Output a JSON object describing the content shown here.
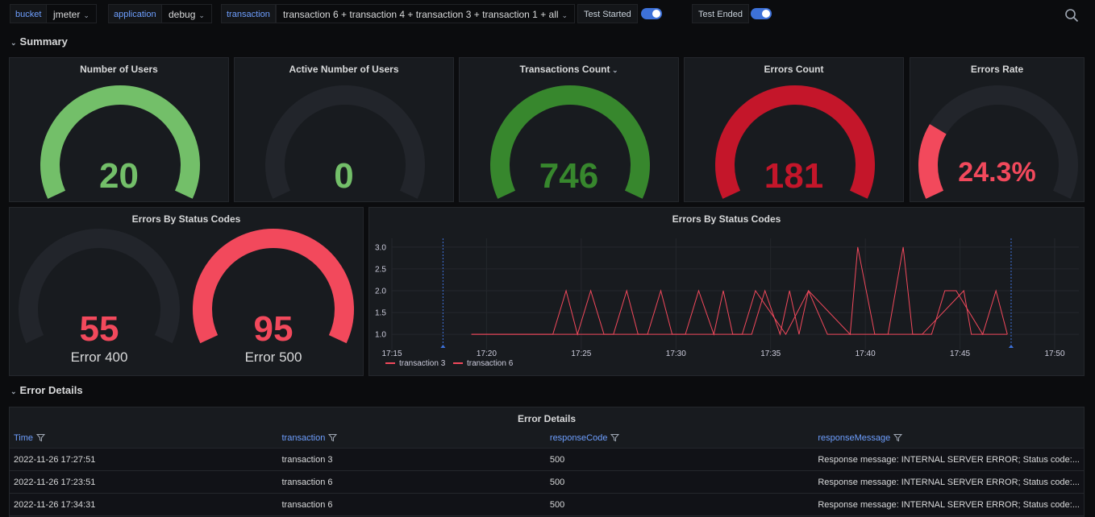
{
  "topbar": {
    "bucket_label": "bucket",
    "bucket_value": "jmeter",
    "application_label": "application",
    "application_value": "debug",
    "transaction_label": "transaction",
    "transaction_value": "transaction 6 + transaction 4 + transaction 3 + transaction 1 + all",
    "test_started_label": "Test Started",
    "test_started_on": true,
    "test_ended_label": "Test Ended",
    "test_ended_on": true
  },
  "rows": {
    "summary": "Summary",
    "error_details": "Error Details"
  },
  "summary_panels": [
    {
      "title": "Number of Users",
      "value": "20",
      "fill": 1.0,
      "color": "#73bf69",
      "text_color": "#73bf69"
    },
    {
      "title": "Active Number of Users",
      "value": "0",
      "fill": 0.0,
      "color": "#73bf69",
      "text_color": "#73bf69"
    },
    {
      "title": "Transactions Count",
      "value": "746",
      "fill": 1.0,
      "color": "#37872d",
      "text_color": "#37872d"
    },
    {
      "title": "Errors Count",
      "value": "181",
      "fill": 1.0,
      "color": "#c4162a",
      "text_color": "#c4162a"
    },
    {
      "title": "Errors Rate",
      "value": "24.3%",
      "fill": 0.243,
      "color": "#f2495c",
      "text_color": "#f2495c"
    }
  ],
  "status_gauge_panel": {
    "title": "Errors By Status Codes",
    "gauges": [
      {
        "value": "55",
        "label": "Error 400",
        "fill": 0.0,
        "color": "#f2495c"
      },
      {
        "value": "95",
        "label": "Error 500",
        "fill": 1.0,
        "color": "#f2495c"
      }
    ]
  },
  "chart_data": {
    "type": "line",
    "title": "Errors By Status Codes",
    "x_ticks": [
      "17:15",
      "17:20",
      "17:25",
      "17:30",
      "17:35",
      "17:40",
      "17:45",
      "17:50"
    ],
    "y_ticks": [
      "1.0",
      "1.5",
      "2.0",
      "2.5",
      "3.0"
    ],
    "ylim": [
      0.8,
      3.2
    ],
    "xlim_minutes": [
      15,
      50
    ],
    "annotations_x": [
      17.7,
      47.7
    ],
    "series": [
      {
        "name": "transaction 3",
        "color": "#f2495c",
        "x": [
          19.2,
          23.5,
          24.2,
          24.8,
          25.5,
          26.2,
          26.7,
          27.4,
          28.0,
          30.5,
          31.2,
          32.0,
          32.5,
          33.0,
          34.0,
          34.7,
          35.5,
          36.0,
          36.5,
          37.0,
          39.2,
          39.6,
          40.5,
          41.2,
          42.0,
          42.5,
          43.0,
          45.2,
          45.6,
          47.5
        ],
        "y": [
          1.0,
          1.0,
          2.0,
          1.0,
          2.0,
          1.0,
          1.0,
          2.0,
          1.0,
          1.0,
          2.0,
          1.0,
          2.0,
          1.0,
          1.0,
          2.0,
          1.0,
          2.0,
          1.0,
          2.0,
          1.0,
          3.0,
          1.0,
          1.0,
          3.0,
          1.0,
          1.0,
          2.0,
          1.0,
          1.0
        ]
      },
      {
        "name": "transaction 6",
        "color": "#f2495c",
        "x": [
          19.2,
          28.5,
          29.2,
          29.8,
          30.2,
          33.5,
          34.2,
          35.8,
          37.0,
          38.0,
          40.8,
          43.5,
          44.2,
          44.8,
          46.2,
          46.9,
          47.5
        ],
        "y": [
          1.0,
          1.0,
          2.0,
          1.0,
          1.0,
          1.0,
          2.0,
          1.0,
          2.0,
          1.0,
          1.0,
          1.0,
          2.0,
          2.0,
          1.0,
          2.0,
          1.0
        ]
      }
    ]
  },
  "error_table": {
    "title": "Error Details",
    "columns": [
      "Time",
      "transaction",
      "responseCode",
      "responseMessage"
    ],
    "rows": [
      [
        "2022-11-26 17:27:51",
        "transaction 3",
        "500",
        "Response message: INTERNAL SERVER ERROR; Status code:..."
      ],
      [
        "2022-11-26 17:23:51",
        "transaction 6",
        "500",
        "Response message: INTERNAL SERVER ERROR; Status code:..."
      ],
      [
        "2022-11-26 17:34:31",
        "transaction 6",
        "500",
        "Response message: INTERNAL SERVER ERROR; Status code:..."
      ]
    ]
  }
}
